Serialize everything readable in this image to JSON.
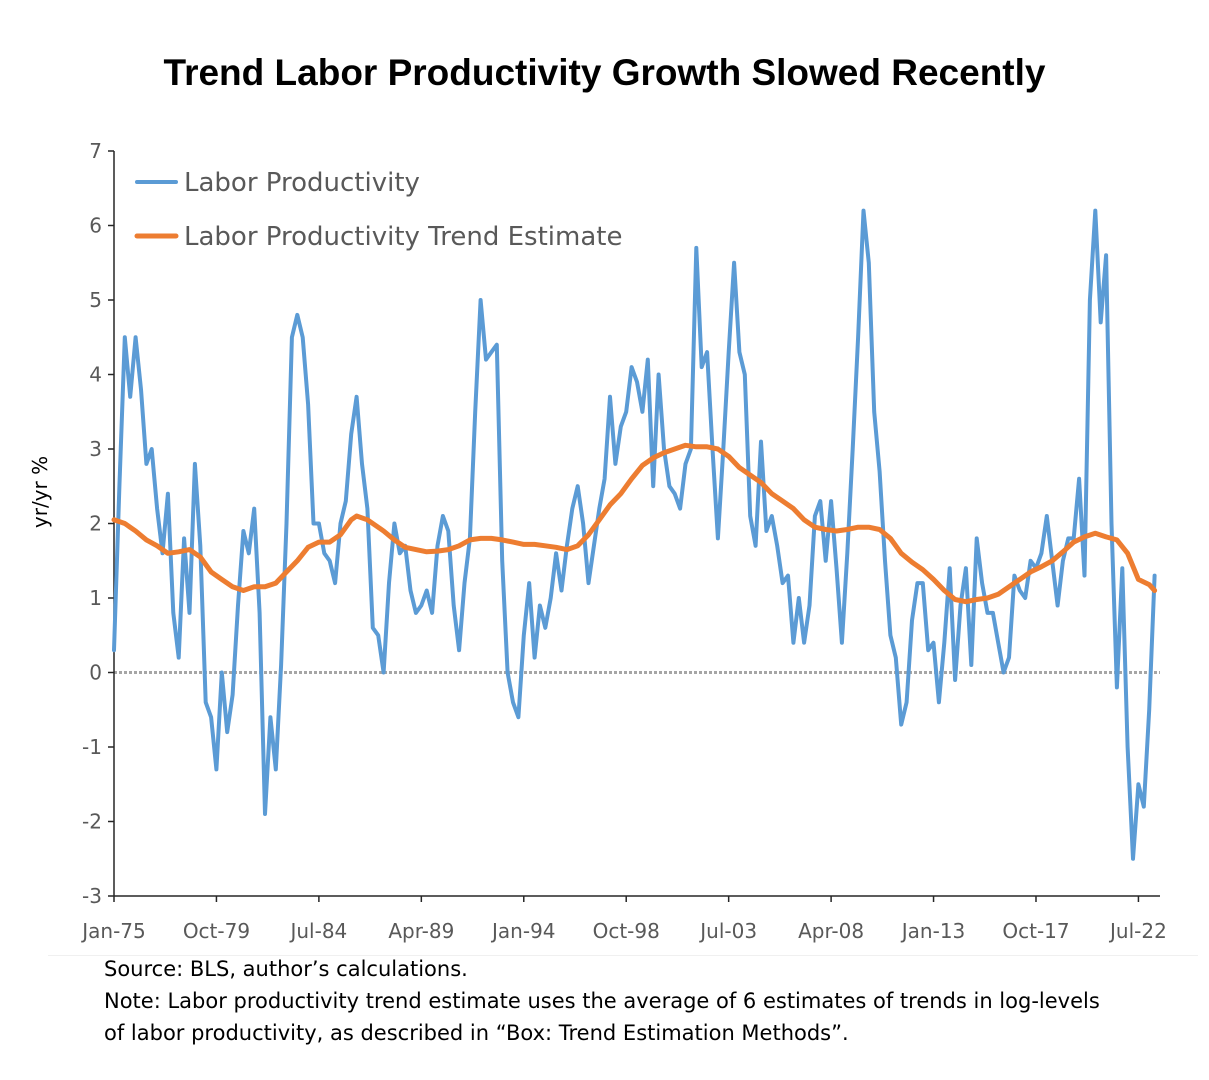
{
  "chart_data": {
    "type": "line",
    "title": "Trend Labor Productivity Growth Slowed Recently",
    "ylabel": "yr/yr %",
    "ylim": [
      -3,
      7
    ],
    "yticks": [
      -3,
      -2,
      -1,
      0,
      1,
      2,
      3,
      4,
      5,
      6,
      7
    ],
    "x_tick_labels": [
      "Jan-75",
      "Oct-79",
      "Jul-84",
      "Apr-89",
      "Jan-94",
      "Oct-98",
      "Jul-03",
      "Apr-08",
      "Jan-13",
      "Oct-17",
      "Jul-22"
    ],
    "x_tick_years": [
      1975.0,
      1979.75,
      1984.5,
      1989.25,
      1994.0,
      1998.75,
      2003.5,
      2008.25,
      2013.0,
      2017.75,
      2022.5
    ],
    "xlim": [
      1975.0,
      2023.5
    ],
    "legend_position": "top-left",
    "zero_line": true,
    "series": [
      {
        "name": "Labor Productivity",
        "color": "#5B9BD5",
        "points": [
          [
            1975.0,
            0.3
          ],
          [
            1975.25,
            2.5
          ],
          [
            1975.5,
            4.5
          ],
          [
            1975.75,
            3.7
          ],
          [
            1976.0,
            4.5
          ],
          [
            1976.25,
            3.8
          ],
          [
            1976.5,
            2.8
          ],
          [
            1976.75,
            3.0
          ],
          [
            1977.0,
            2.2
          ],
          [
            1977.25,
            1.6
          ],
          [
            1977.5,
            2.4
          ],
          [
            1977.75,
            0.8
          ],
          [
            1978.0,
            0.2
          ],
          [
            1978.25,
            1.8
          ],
          [
            1978.5,
            0.8
          ],
          [
            1978.75,
            2.8
          ],
          [
            1979.0,
            1.7
          ],
          [
            1979.25,
            -0.4
          ],
          [
            1979.5,
            -0.6
          ],
          [
            1979.75,
            -1.3
          ],
          [
            1980.0,
            0.0
          ],
          [
            1980.25,
            -0.8
          ],
          [
            1980.5,
            -0.3
          ],
          [
            1980.75,
            0.9
          ],
          [
            1981.0,
            1.9
          ],
          [
            1981.25,
            1.6
          ],
          [
            1981.5,
            2.2
          ],
          [
            1981.75,
            0.8
          ],
          [
            1982.0,
            -1.9
          ],
          [
            1982.25,
            -0.6
          ],
          [
            1982.5,
            -1.3
          ],
          [
            1982.75,
            0.1
          ],
          [
            1983.0,
            2.0
          ],
          [
            1983.25,
            4.5
          ],
          [
            1983.5,
            4.8
          ],
          [
            1983.75,
            4.5
          ],
          [
            1984.0,
            3.6
          ],
          [
            1984.25,
            2.0
          ],
          [
            1984.5,
            2.0
          ],
          [
            1984.75,
            1.6
          ],
          [
            1985.0,
            1.5
          ],
          [
            1985.25,
            1.2
          ],
          [
            1985.5,
            2.0
          ],
          [
            1985.75,
            2.3
          ],
          [
            1986.0,
            3.2
          ],
          [
            1986.25,
            3.7
          ],
          [
            1986.5,
            2.8
          ],
          [
            1986.75,
            2.2
          ],
          [
            1987.0,
            0.6
          ],
          [
            1987.25,
            0.5
          ],
          [
            1987.5,
            0.0
          ],
          [
            1987.75,
            1.2
          ],
          [
            1988.0,
            2.0
          ],
          [
            1988.25,
            1.6
          ],
          [
            1988.5,
            1.7
          ],
          [
            1988.75,
            1.1
          ],
          [
            1989.0,
            0.8
          ],
          [
            1989.25,
            0.9
          ],
          [
            1989.5,
            1.1
          ],
          [
            1989.75,
            0.8
          ],
          [
            1990.0,
            1.7
          ],
          [
            1990.25,
            2.1
          ],
          [
            1990.5,
            1.9
          ],
          [
            1990.75,
            0.9
          ],
          [
            1991.0,
            0.3
          ],
          [
            1991.25,
            1.2
          ],
          [
            1991.5,
            1.8
          ],
          [
            1991.75,
            3.5
          ],
          [
            1992.0,
            5.0
          ],
          [
            1992.25,
            4.2
          ],
          [
            1992.5,
            4.3
          ],
          [
            1992.75,
            4.4
          ],
          [
            1993.0,
            1.5
          ],
          [
            1993.25,
            0.0
          ],
          [
            1993.5,
            -0.4
          ],
          [
            1993.75,
            -0.6
          ],
          [
            1994.0,
            0.5
          ],
          [
            1994.25,
            1.2
          ],
          [
            1994.5,
            0.2
          ],
          [
            1994.75,
            0.9
          ],
          [
            1995.0,
            0.6
          ],
          [
            1995.25,
            1.0
          ],
          [
            1995.5,
            1.6
          ],
          [
            1995.75,
            1.1
          ],
          [
            1996.0,
            1.7
          ],
          [
            1996.25,
            2.2
          ],
          [
            1996.5,
            2.5
          ],
          [
            1996.75,
            2.0
          ],
          [
            1997.0,
            1.2
          ],
          [
            1997.25,
            1.7
          ],
          [
            1997.5,
            2.2
          ],
          [
            1997.75,
            2.6
          ],
          [
            1998.0,
            3.7
          ],
          [
            1998.25,
            2.8
          ],
          [
            1998.5,
            3.3
          ],
          [
            1998.75,
            3.5
          ],
          [
            1999.0,
            4.1
          ],
          [
            1999.25,
            3.9
          ],
          [
            1999.5,
            3.5
          ],
          [
            1999.75,
            4.2
          ],
          [
            2000.0,
            2.5
          ],
          [
            2000.25,
            4.0
          ],
          [
            2000.5,
            3.0
          ],
          [
            2000.75,
            2.5
          ],
          [
            2001.0,
            2.4
          ],
          [
            2001.25,
            2.2
          ],
          [
            2001.5,
            2.8
          ],
          [
            2001.75,
            3.0
          ],
          [
            2002.0,
            5.7
          ],
          [
            2002.25,
            4.1
          ],
          [
            2002.5,
            4.3
          ],
          [
            2002.75,
            3.0
          ],
          [
            2003.0,
            1.8
          ],
          [
            2003.25,
            3.0
          ],
          [
            2003.5,
            4.3
          ],
          [
            2003.75,
            5.5
          ],
          [
            2004.0,
            4.3
          ],
          [
            2004.25,
            4.0
          ],
          [
            2004.5,
            2.1
          ],
          [
            2004.75,
            1.7
          ],
          [
            2005.0,
            3.1
          ],
          [
            2005.25,
            1.9
          ],
          [
            2005.5,
            2.1
          ],
          [
            2005.75,
            1.7
          ],
          [
            2006.0,
            1.2
          ],
          [
            2006.25,
            1.3
          ],
          [
            2006.5,
            0.4
          ],
          [
            2006.75,
            1.0
          ],
          [
            2007.0,
            0.4
          ],
          [
            2007.25,
            0.9
          ],
          [
            2007.5,
            2.1
          ],
          [
            2007.75,
            2.3
          ],
          [
            2008.0,
            1.5
          ],
          [
            2008.25,
            2.3
          ],
          [
            2008.5,
            1.4
          ],
          [
            2008.75,
            0.4
          ],
          [
            2009.0,
            1.6
          ],
          [
            2009.25,
            3.0
          ],
          [
            2009.5,
            4.5
          ],
          [
            2009.75,
            6.2
          ],
          [
            2010.0,
            5.5
          ],
          [
            2010.25,
            3.5
          ],
          [
            2010.5,
            2.7
          ],
          [
            2010.75,
            1.5
          ],
          [
            2011.0,
            0.5
          ],
          [
            2011.25,
            0.2
          ],
          [
            2011.5,
            -0.7
          ],
          [
            2011.75,
            -0.4
          ],
          [
            2012.0,
            0.7
          ],
          [
            2012.25,
            1.2
          ],
          [
            2012.5,
            1.2
          ],
          [
            2012.75,
            0.3
          ],
          [
            2013.0,
            0.4
          ],
          [
            2013.25,
            -0.4
          ],
          [
            2013.5,
            0.4
          ],
          [
            2013.75,
            1.4
          ],
          [
            2014.0,
            -0.1
          ],
          [
            2014.25,
            0.9
          ],
          [
            2014.5,
            1.4
          ],
          [
            2014.75,
            0.1
          ],
          [
            2015.0,
            1.8
          ],
          [
            2015.25,
            1.2
          ],
          [
            2015.5,
            0.8
          ],
          [
            2015.75,
            0.8
          ],
          [
            2016.0,
            0.4
          ],
          [
            2016.25,
            0.0
          ],
          [
            2016.5,
            0.2
          ],
          [
            2016.75,
            1.3
          ],
          [
            2017.0,
            1.1
          ],
          [
            2017.25,
            1.0
          ],
          [
            2017.5,
            1.5
          ],
          [
            2017.75,
            1.4
          ],
          [
            2018.0,
            1.6
          ],
          [
            2018.25,
            2.1
          ],
          [
            2018.5,
            1.5
          ],
          [
            2018.75,
            0.9
          ],
          [
            2019.0,
            1.5
          ],
          [
            2019.25,
            1.8
          ],
          [
            2019.5,
            1.8
          ],
          [
            2019.75,
            2.6
          ],
          [
            2020.0,
            1.3
          ],
          [
            2020.25,
            5.0
          ],
          [
            2020.5,
            6.2
          ],
          [
            2020.75,
            4.7
          ],
          [
            2021.0,
            5.6
          ],
          [
            2021.25,
            2.0
          ],
          [
            2021.5,
            -0.2
          ],
          [
            2021.75,
            1.4
          ],
          [
            2022.0,
            -1.0
          ],
          [
            2022.25,
            -2.5
          ],
          [
            2022.5,
            -1.5
          ],
          [
            2022.75,
            -1.8
          ],
          [
            2023.0,
            -0.5
          ],
          [
            2023.25,
            1.3
          ]
        ]
      },
      {
        "name": "Labor Productivity Trend Estimate",
        "color": "#ED7D31",
        "points": [
          [
            1975.0,
            2.05
          ],
          [
            1975.5,
            2.0
          ],
          [
            1976.0,
            1.9
          ],
          [
            1976.5,
            1.78
          ],
          [
            1977.0,
            1.7
          ],
          [
            1977.5,
            1.6
          ],
          [
            1978.0,
            1.62
          ],
          [
            1978.5,
            1.65
          ],
          [
            1979.0,
            1.55
          ],
          [
            1979.5,
            1.35
          ],
          [
            1980.0,
            1.25
          ],
          [
            1980.5,
            1.15
          ],
          [
            1981.0,
            1.1
          ],
          [
            1981.5,
            1.15
          ],
          [
            1982.0,
            1.15
          ],
          [
            1982.5,
            1.2
          ],
          [
            1983.0,
            1.35
          ],
          [
            1983.5,
            1.5
          ],
          [
            1984.0,
            1.68
          ],
          [
            1984.5,
            1.75
          ],
          [
            1985.0,
            1.75
          ],
          [
            1985.5,
            1.85
          ],
          [
            1986.0,
            2.05
          ],
          [
            1986.25,
            2.1
          ],
          [
            1986.75,
            2.05
          ],
          [
            1987.5,
            1.9
          ],
          [
            1988.0,
            1.78
          ],
          [
            1988.5,
            1.68
          ],
          [
            1989.0,
            1.65
          ],
          [
            1989.5,
            1.62
          ],
          [
            1990.0,
            1.63
          ],
          [
            1990.5,
            1.65
          ],
          [
            1991.0,
            1.7
          ],
          [
            1991.5,
            1.78
          ],
          [
            1992.0,
            1.8
          ],
          [
            1992.5,
            1.8
          ],
          [
            1993.0,
            1.78
          ],
          [
            1993.5,
            1.75
          ],
          [
            1994.0,
            1.72
          ],
          [
            1994.5,
            1.72
          ],
          [
            1995.0,
            1.7
          ],
          [
            1995.5,
            1.68
          ],
          [
            1996.0,
            1.65
          ],
          [
            1996.5,
            1.7
          ],
          [
            1997.0,
            1.85
          ],
          [
            1997.5,
            2.05
          ],
          [
            1998.0,
            2.25
          ],
          [
            1998.5,
            2.4
          ],
          [
            1999.0,
            2.6
          ],
          [
            1999.5,
            2.78
          ],
          [
            2000.0,
            2.88
          ],
          [
            2000.5,
            2.95
          ],
          [
            2001.0,
            3.0
          ],
          [
            2001.5,
            3.05
          ],
          [
            2002.0,
            3.03
          ],
          [
            2002.5,
            3.03
          ],
          [
            2003.0,
            3.0
          ],
          [
            2003.5,
            2.9
          ],
          [
            2004.0,
            2.75
          ],
          [
            2004.5,
            2.65
          ],
          [
            2005.0,
            2.55
          ],
          [
            2005.5,
            2.4
          ],
          [
            2006.0,
            2.3
          ],
          [
            2006.5,
            2.2
          ],
          [
            2007.0,
            2.05
          ],
          [
            2007.5,
            1.95
          ],
          [
            2008.0,
            1.92
          ],
          [
            2008.5,
            1.9
          ],
          [
            2009.0,
            1.92
          ],
          [
            2009.5,
            1.95
          ],
          [
            2010.0,
            1.95
          ],
          [
            2010.5,
            1.92
          ],
          [
            2011.0,
            1.8
          ],
          [
            2011.5,
            1.6
          ],
          [
            2012.0,
            1.48
          ],
          [
            2012.5,
            1.38
          ],
          [
            2013.0,
            1.25
          ],
          [
            2013.5,
            1.1
          ],
          [
            2014.0,
            0.98
          ],
          [
            2014.5,
            0.95
          ],
          [
            2015.0,
            0.98
          ],
          [
            2015.5,
            1.0
          ],
          [
            2016.0,
            1.05
          ],
          [
            2016.5,
            1.15
          ],
          [
            2017.0,
            1.25
          ],
          [
            2017.5,
            1.35
          ],
          [
            2018.0,
            1.42
          ],
          [
            2018.5,
            1.5
          ],
          [
            2019.0,
            1.62
          ],
          [
            2019.5,
            1.75
          ],
          [
            2020.0,
            1.82
          ],
          [
            2020.5,
            1.87
          ],
          [
            2021.0,
            1.82
          ],
          [
            2021.5,
            1.78
          ],
          [
            2022.0,
            1.6
          ],
          [
            2022.5,
            1.25
          ],
          [
            2023.0,
            1.18
          ],
          [
            2023.25,
            1.1
          ]
        ]
      }
    ]
  },
  "footer": {
    "source": "Source: BLS, author’s calculations.",
    "note_line1": "Note: Labor productivity trend estimate uses the average of 6 estimates of trends in log-levels",
    "note_line2": "of labor productivity, as described in “Box: Trend Estimation Methods”."
  }
}
